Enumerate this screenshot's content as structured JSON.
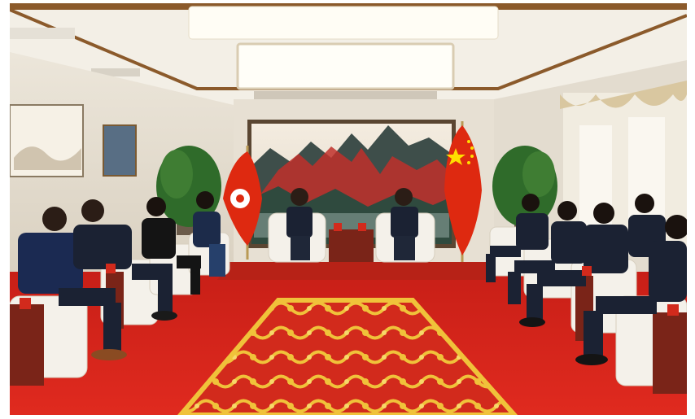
{
  "photo": {
    "subject": "meeting-room",
    "palette": {
      "ceiling": "#f3efe6",
      "ceiling_trim": "#8b5a2b",
      "light_panel": "#fffdf5",
      "wall": "#e6dfd2",
      "carpet": "#d8261c",
      "rug_gold": "#e9b531",
      "sofa": "#f4f1ea",
      "suit": "#1b2233",
      "flag_red": "#de2910",
      "flag_yellow": "#ffde00",
      "curtain": "#f1ece0",
      "valance": "#d9c7a0",
      "plant": "#2f6b2a",
      "table_wood": "#7a2418"
    }
  }
}
